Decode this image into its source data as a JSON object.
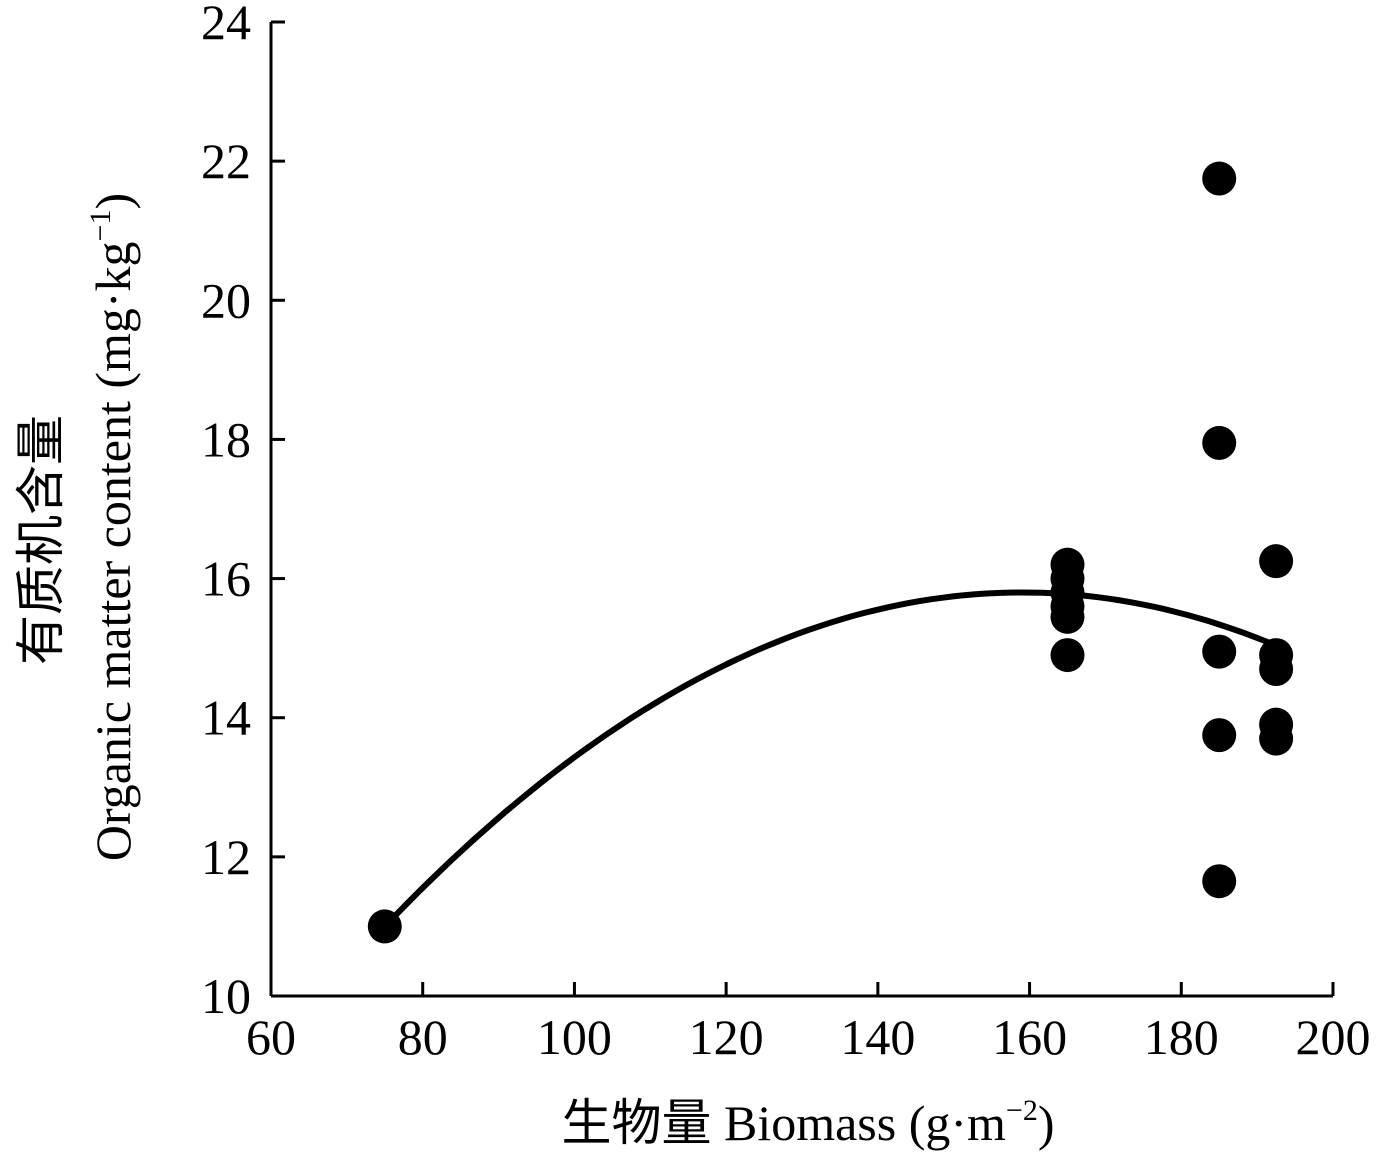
{
  "chart_data": {
    "type": "scatter",
    "xlabel": {
      "prefix": "生物量 Biomass (g·m",
      "sup": "−2",
      "suffix": ")"
    },
    "ylabel_cn": "有质机含量",
    "ylabel": {
      "prefix": "Organic matter content (mg·kg",
      "sup": "−1",
      "suffix": ")"
    },
    "xlim": [
      60,
      200
    ],
    "ylim": [
      10,
      24
    ],
    "xticks": [
      "60",
      "80",
      "100",
      "120",
      "140",
      "160",
      "180",
      "200"
    ],
    "yticks": [
      "10",
      "12",
      "14",
      "16",
      "18",
      "20",
      "22",
      "24"
    ],
    "grid": false,
    "points": [
      {
        "x": 75,
        "y": 11.0
      },
      {
        "x": 165,
        "y": 16.2
      },
      {
        "x": 165,
        "y": 16.0
      },
      {
        "x": 165,
        "y": 15.8
      },
      {
        "x": 165,
        "y": 15.6
      },
      {
        "x": 165,
        "y": 15.45
      },
      {
        "x": 165,
        "y": 14.9
      },
      {
        "x": 185,
        "y": 21.75
      },
      {
        "x": 185,
        "y": 17.95
      },
      {
        "x": 185,
        "y": 14.95
      },
      {
        "x": 185,
        "y": 13.75
      },
      {
        "x": 185,
        "y": 11.65
      },
      {
        "x": 192.5,
        "y": 16.25
      },
      {
        "x": 192.5,
        "y": 14.9
      },
      {
        "x": 192.5,
        "y": 14.7
      },
      {
        "x": 192.5,
        "y": 13.9
      },
      {
        "x": 192.5,
        "y": 13.7
      }
    ],
    "fit": {
      "type": "quadratic",
      "x_range": [
        75,
        192.5
      ],
      "vertex": [
        159,
        15.8
      ],
      "passes_through": [
        75,
        11.0
      ]
    }
  }
}
